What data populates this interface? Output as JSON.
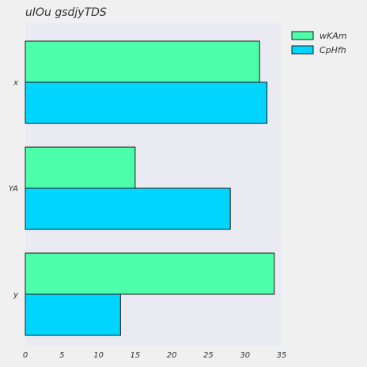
{
  "chart_data": {
    "type": "bar",
    "orientation": "horizontal",
    "title": "uIOu gsdjyTDS",
    "xlabel": "",
    "ylabel": "",
    "categories": [
      "x",
      "YA",
      "y"
    ],
    "series": [
      {
        "name": "wKAm",
        "values": [
          32,
          15,
          34
        ],
        "color": "#4dffaa"
      },
      {
        "name": "CpHfh",
        "values": [
          33,
          28,
          13
        ],
        "color": "#00d5ff"
      }
    ],
    "xlim": [
      0,
      35
    ],
    "xticks": [
      0,
      5,
      10,
      15,
      20,
      25,
      30,
      35
    ],
    "grid": false,
    "legend_position": "top-right",
    "plot_background": "#eaeaf2",
    "figure_background": "#f0f0f0"
  }
}
